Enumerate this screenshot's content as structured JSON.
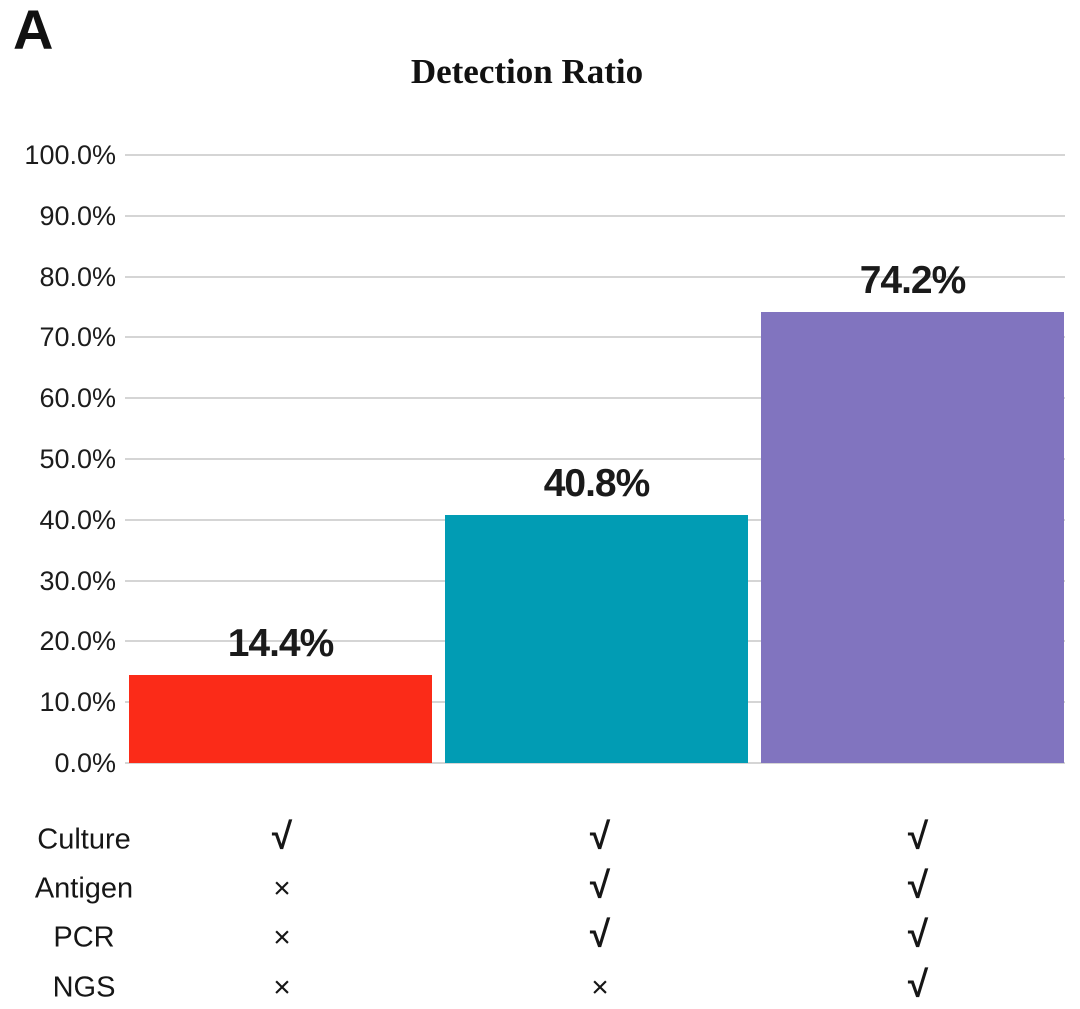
{
  "panel_label": "A",
  "chart_data": {
    "type": "bar",
    "title": "Detection Ratio",
    "values": [
      14.4,
      40.8,
      74.2
    ],
    "value_labels": [
      "14.4%",
      "40.8%",
      "74.2%"
    ],
    "bar_colors": [
      "#fb2b18",
      "#019cb4",
      "#8174bf"
    ],
    "ylim": [
      0,
      100
    ],
    "ytick_labels": [
      "100.0%",
      "90.0%",
      "80.0%",
      "70.0%",
      "60.0%",
      "50.0%",
      "40.0%",
      "30.0%",
      "20.0%",
      "10.0%",
      "0.0%"
    ],
    "ytick_values": [
      100,
      90,
      80,
      70,
      60,
      50,
      40,
      30,
      20,
      10,
      0
    ],
    "grid": true,
    "legend": null,
    "gridline_color": "#d5d5d5",
    "method_matrix": {
      "row_labels": [
        "Culture",
        "Antigen",
        "PCR",
        "NGS"
      ],
      "check_symbol": "√",
      "cross_symbol": "×",
      "cells": [
        [
          "check",
          "check",
          "check"
        ],
        [
          "cross",
          "check",
          "check"
        ],
        [
          "cross",
          "check",
          "check"
        ],
        [
          "cross",
          "cross",
          "check"
        ]
      ]
    }
  }
}
